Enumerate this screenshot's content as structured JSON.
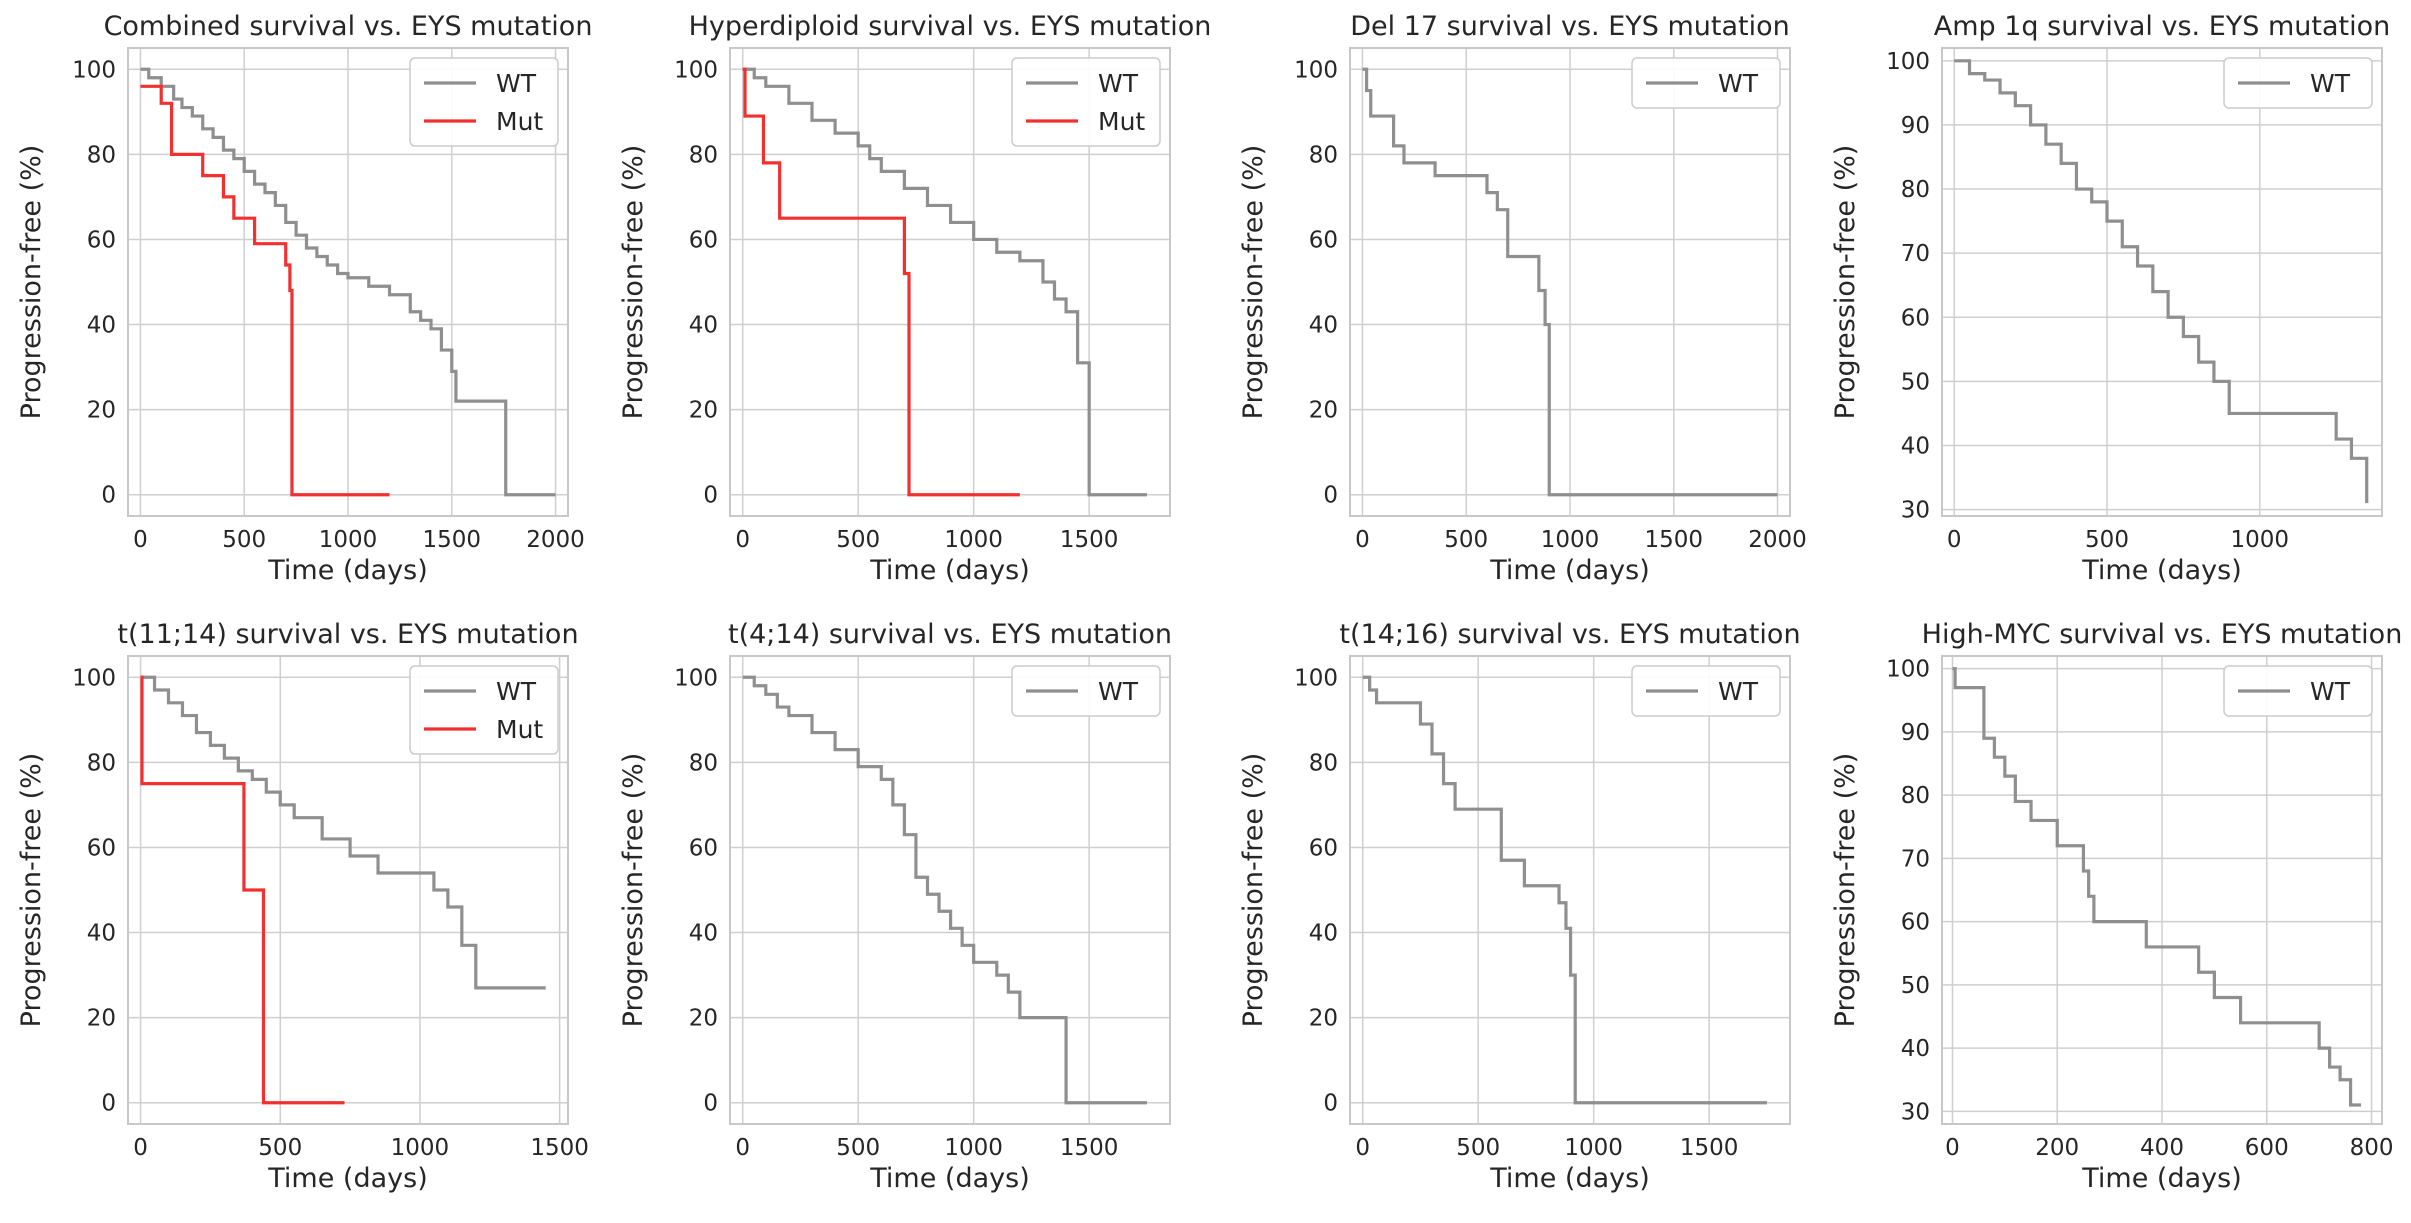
{
  "figure": {
    "background": "#ffffff",
    "colors": {
      "WT": "#8f8f8f",
      "Mut": "#f23030",
      "grid": "#cfcfcf",
      "frame": "#c8c8c8"
    }
  },
  "chart_data": [
    {
      "type": "line",
      "title": "Combined survival vs. EYS mutation",
      "xlabel": "Time (days)",
      "ylabel": "Progression-free (%)",
      "xlim": [
        -60,
        2060
      ],
      "ylim": [
        -5,
        105
      ],
      "xticks": [
        0,
        500,
        1000,
        1500,
        2000
      ],
      "yticks": [
        0,
        20,
        40,
        60,
        80,
        100
      ],
      "legend": [
        "WT",
        "Mut"
      ],
      "series": [
        {
          "name": "WT",
          "x": [
            0,
            40,
            100,
            160,
            200,
            250,
            300,
            350,
            400,
            450,
            500,
            550,
            600,
            650,
            700,
            750,
            800,
            850,
            900,
            950,
            1000,
            1100,
            1200,
            1300,
            1350,
            1400,
            1450,
            1500,
            1520,
            1750,
            1760,
            2000
          ],
          "y": [
            100,
            98,
            96,
            93,
            91,
            89,
            86,
            84,
            81,
            79,
            76,
            73,
            71,
            68,
            64,
            61,
            58,
            56,
            54,
            52,
            51,
            49,
            47,
            43,
            41,
            39,
            34,
            29,
            22,
            22,
            0,
            0
          ]
        },
        {
          "name": "Mut",
          "x": [
            0,
            100,
            150,
            300,
            400,
            450,
            550,
            700,
            720,
            730,
            1200
          ],
          "y": [
            96,
            92,
            80,
            75,
            70,
            65,
            59,
            54,
            48,
            0,
            0
          ]
        }
      ]
    },
    {
      "type": "line",
      "title": "Hyperdiploid survival vs. EYS mutation",
      "xlabel": "Time (days)",
      "ylabel": "Progression-free (%)",
      "xlim": [
        -55,
        1850
      ],
      "ylim": [
        -5,
        105
      ],
      "xticks": [
        0,
        500,
        1000,
        1500
      ],
      "yticks": [
        0,
        20,
        40,
        60,
        80,
        100
      ],
      "legend": [
        "WT",
        "Mut"
      ],
      "series": [
        {
          "name": "WT",
          "x": [
            0,
            50,
            100,
            200,
            300,
            400,
            500,
            550,
            600,
            700,
            800,
            900,
            1000,
            1100,
            1200,
            1300,
            1350,
            1400,
            1450,
            1500,
            1750
          ],
          "y": [
            100,
            98,
            96,
            92,
            88,
            85,
            82,
            79,
            76,
            72,
            68,
            64,
            60,
            57,
            55,
            50,
            46,
            43,
            31,
            0,
            0
          ]
        },
        {
          "name": "Mut",
          "x": [
            0,
            10,
            90,
            160,
            700,
            720,
            1200
          ],
          "y": [
            100,
            89,
            78,
            65,
            52,
            0,
            0
          ]
        }
      ]
    },
    {
      "type": "line",
      "title": "Del 17 survival vs. EYS mutation",
      "xlabel": "Time (days)",
      "ylabel": "Progression-free (%)",
      "xlim": [
        -60,
        2060
      ],
      "ylim": [
        -5,
        105
      ],
      "xticks": [
        0,
        500,
        1000,
        1500,
        2000
      ],
      "yticks": [
        0,
        20,
        40,
        60,
        80,
        100
      ],
      "legend": [
        "WT"
      ],
      "series": [
        {
          "name": "WT",
          "x": [
            0,
            20,
            40,
            150,
            200,
            350,
            600,
            650,
            700,
            850,
            880,
            900,
            920,
            2000
          ],
          "y": [
            100,
            95,
            89,
            82,
            78,
            75,
            71,
            67,
            56,
            48,
            40,
            0,
            0,
            0
          ]
        }
      ]
    },
    {
      "type": "line",
      "title": "Amp 1q survival vs. EYS mutation",
      "xlabel": "Time (days)",
      "ylabel": "Progression-free (%)",
      "xlim": [
        -40,
        1400
      ],
      "ylim": [
        29,
        102
      ],
      "xticks": [
        0,
        500,
        1000
      ],
      "yticks": [
        30,
        40,
        50,
        60,
        70,
        80,
        90,
        100
      ],
      "legend": [
        "WT"
      ],
      "series": [
        {
          "name": "WT",
          "x": [
            0,
            50,
            100,
            150,
            200,
            250,
            300,
            350,
            400,
            450,
            500,
            550,
            600,
            650,
            700,
            750,
            800,
            850,
            900,
            1200,
            1250,
            1300,
            1350
          ],
          "y": [
            100,
            98,
            97,
            95,
            93,
            90,
            87,
            84,
            80,
            78,
            75,
            71,
            68,
            64,
            60,
            57,
            53,
            50,
            45,
            45,
            41,
            38,
            31
          ]
        }
      ]
    },
    {
      "type": "line",
      "title": "t(11;14) survival vs. EYS mutation",
      "xlabel": "Time (days)",
      "ylabel": "Progression-free (%)",
      "xlim": [
        -45,
        1530
      ],
      "ylim": [
        -5,
        105
      ],
      "xticks": [
        0,
        500,
        1000,
        1500
      ],
      "yticks": [
        0,
        20,
        40,
        60,
        80,
        100
      ],
      "legend": [
        "WT",
        "Mut"
      ],
      "series": [
        {
          "name": "WT",
          "x": [
            0,
            50,
            100,
            150,
            200,
            250,
            300,
            350,
            400,
            450,
            500,
            550,
            650,
            750,
            850,
            1050,
            1100,
            1150,
            1200,
            1450
          ],
          "y": [
            100,
            97,
            94,
            91,
            87,
            84,
            81,
            78,
            76,
            73,
            70,
            67,
            62,
            58,
            54,
            50,
            46,
            37,
            27,
            27
          ]
        },
        {
          "name": "Mut",
          "x": [
            0,
            5,
            370,
            440,
            730
          ],
          "y": [
            100,
            75,
            50,
            0,
            0
          ]
        }
      ]
    },
    {
      "type": "line",
      "title": "t(4;14) survival vs. EYS mutation",
      "xlabel": "Time (days)",
      "ylabel": "Progression-free (%)",
      "xlim": [
        -55,
        1850
      ],
      "ylim": [
        -5,
        105
      ],
      "xticks": [
        0,
        500,
        1000,
        1500
      ],
      "yticks": [
        0,
        20,
        40,
        60,
        80,
        100
      ],
      "legend": [
        "WT"
      ],
      "series": [
        {
          "name": "WT",
          "x": [
            0,
            50,
            100,
            150,
            200,
            300,
            400,
            500,
            600,
            650,
            700,
            750,
            800,
            850,
            900,
            950,
            1000,
            1100,
            1150,
            1200,
            1350,
            1400,
            1750
          ],
          "y": [
            100,
            98,
            96,
            93,
            91,
            87,
            83,
            79,
            76,
            70,
            63,
            53,
            49,
            45,
            41,
            37,
            33,
            30,
            26,
            20,
            20,
            0,
            0
          ]
        }
      ]
    },
    {
      "type": "line",
      "title": "t(14;16) survival vs. EYS mutation",
      "xlabel": "Time (days)",
      "ylabel": "Progression-free (%)",
      "xlim": [
        -55,
        1850
      ],
      "ylim": [
        -5,
        105
      ],
      "xticks": [
        0,
        500,
        1000,
        1500
      ],
      "yticks": [
        0,
        20,
        40,
        60,
        80,
        100
      ],
      "legend": [
        "WT"
      ],
      "series": [
        {
          "name": "WT",
          "x": [
            0,
            30,
            60,
            250,
            300,
            350,
            400,
            550,
            600,
            700,
            850,
            880,
            900,
            920,
            1750
          ],
          "y": [
            100,
            97,
            94,
            89,
            82,
            75,
            69,
            69,
            57,
            51,
            47,
            41,
            30,
            0,
            0
          ]
        }
      ]
    },
    {
      "type": "line",
      "title": "High-MYC survival vs. EYS mutation",
      "xlabel": "Time (days)",
      "ylabel": "Progression-free (%)",
      "xlim": [
        -20,
        820
      ],
      "ylim": [
        28,
        102
      ],
      "xticks": [
        0,
        200,
        400,
        600,
        800
      ],
      "yticks": [
        30,
        40,
        50,
        60,
        70,
        80,
        90,
        100
      ],
      "legend": [
        "WT"
      ],
      "series": [
        {
          "name": "WT",
          "x": [
            0,
            5,
            60,
            80,
            100,
            120,
            150,
            200,
            250,
            260,
            270,
            280,
            370,
            470,
            500,
            550,
            700,
            720,
            740,
            760,
            780
          ],
          "y": [
            100,
            97,
            89,
            86,
            83,
            79,
            76,
            72,
            68,
            64,
            60,
            60,
            56,
            52,
            48,
            44,
            40,
            37,
            35,
            31,
            31
          ]
        }
      ]
    }
  ]
}
